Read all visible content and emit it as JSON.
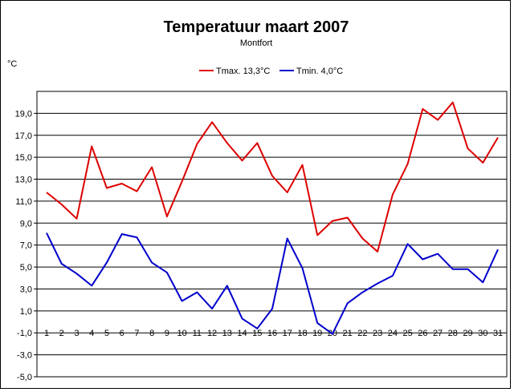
{
  "chart_data": {
    "type": "line",
    "title": "Temperatuur maart 2007",
    "subtitle": "Montfort",
    "ylabel": "°C",
    "xlabel": "",
    "ylim": [
      -5,
      21
    ],
    "yticks": [
      "19,0",
      "17,0",
      "15,0",
      "13,0",
      "11,0",
      "9,0",
      "7,0",
      "5,0",
      "3,0",
      "1,0",
      "-1,0",
      "-3,0",
      "-5,0"
    ],
    "ytick_values": [
      19,
      17,
      15,
      13,
      11,
      9,
      7,
      5,
      3,
      1,
      -1,
      -3,
      -5
    ],
    "categories": [
      "1",
      "2",
      "3",
      "4",
      "5",
      "6",
      "7",
      "8",
      "9",
      "10",
      "11",
      "12",
      "13",
      "14",
      "15",
      "16",
      "17",
      "18",
      "19",
      "20",
      "21",
      "22",
      "23",
      "24",
      "25",
      "26",
      "27",
      "28",
      "29",
      "30",
      "31"
    ],
    "grid": true,
    "legend_position": "top-center",
    "series": [
      {
        "name": "Tmax. 13,3°C",
        "color": "#dd0000",
        "values": [
          11.8,
          10.7,
          9.4,
          16.0,
          12.2,
          12.6,
          11.9,
          14.1,
          9.6,
          12.8,
          16.2,
          18.2,
          16.3,
          14.7,
          16.3,
          13.3,
          11.8,
          14.3,
          7.9,
          9.2,
          9.5,
          7.6,
          6.4,
          11.6,
          14.4,
          19.4,
          18.4,
          20.0,
          15.8,
          14.5,
          16.8
        ]
      },
      {
        "name": "Tmin. 4,0°C",
        "color": "#0000cc",
        "values": [
          8.1,
          5.3,
          4.4,
          3.3,
          5.4,
          8.0,
          7.7,
          5.4,
          4.5,
          1.9,
          2.7,
          1.2,
          3.3,
          0.3,
          -0.6,
          1.2,
          7.6,
          4.9,
          -0.1,
          -1.1,
          1.7,
          2.7,
          3.5,
          4.2,
          7.1,
          5.7,
          6.2,
          4.8,
          4.8,
          3.6,
          6.6
        ]
      }
    ]
  }
}
